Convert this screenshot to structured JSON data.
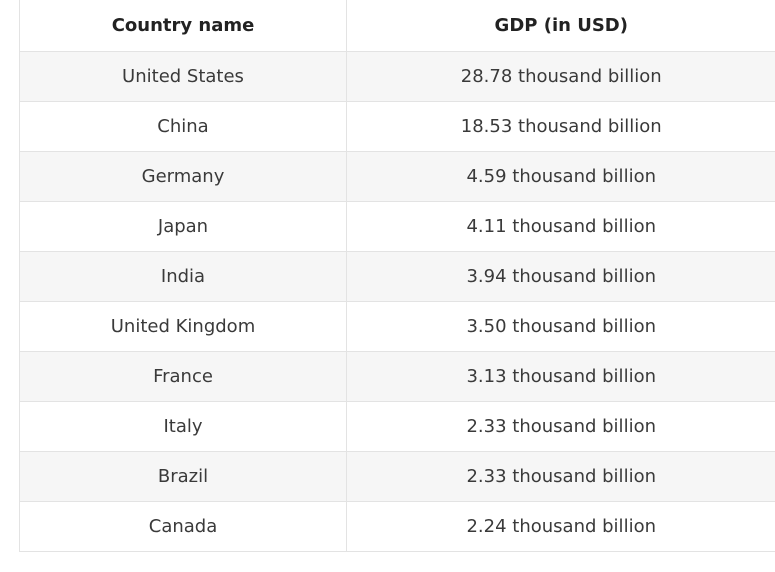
{
  "table": {
    "headers": [
      "Country name",
      "GDP (in USD)"
    ],
    "rows": [
      [
        "United States",
        "28.78 thousand billion"
      ],
      [
        "China",
        "18.53 thousand billion"
      ],
      [
        "Germany",
        "4.59 thousand billion"
      ],
      [
        "Japan",
        "4.11 thousand billion"
      ],
      [
        "India",
        "3.94 thousand billion"
      ],
      [
        "United Kingdom",
        "3.50 thousand billion"
      ],
      [
        "France",
        "3.13 thousand billion"
      ],
      [
        "Italy",
        "2.33 thousand billion"
      ],
      [
        "Brazil",
        "2.33 thousand billion"
      ],
      [
        "Canada",
        "2.24 thousand billion"
      ]
    ]
  }
}
